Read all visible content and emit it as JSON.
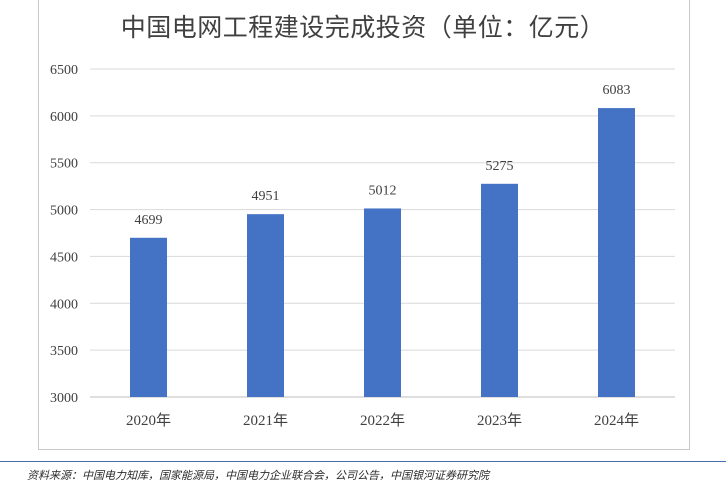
{
  "chart_data": {
    "type": "bar",
    "title": "中国电网工程建设完成投资（单位：亿元）",
    "categories": [
      "2020年",
      "2021年",
      "2022年",
      "2023年",
      "2024年"
    ],
    "values": [
      4699,
      4951,
      5012,
      5275,
      6083
    ],
    "ylim": [
      3000,
      6500
    ],
    "yticks": [
      3000,
      3500,
      4000,
      4500,
      5000,
      5500,
      6000,
      6500
    ],
    "grid": true,
    "bar_color": "#4472c4",
    "xlabel": "",
    "ylabel": ""
  },
  "source_note": "资料来源：中国电力知库，国家能源局，中国电力企业联合会，公司公告，中国银河证券研究院"
}
